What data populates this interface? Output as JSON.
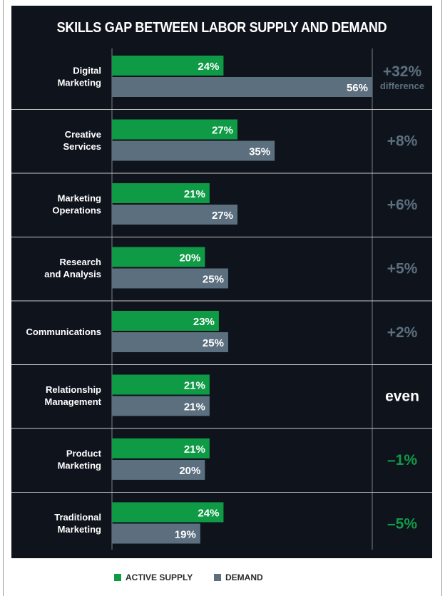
{
  "chart_data": {
    "type": "bar",
    "title": "SKILLS GAP BETWEEN LABOR SUPPLY AND DEMAND",
    "categories": [
      [
        "Digital",
        "Marketing"
      ],
      [
        "Creative",
        "Services"
      ],
      [
        "Marketing",
        "Operations"
      ],
      [
        "Research",
        "and Analysis"
      ],
      [
        "Communications"
      ],
      [
        "Relationship",
        "Management"
      ],
      [
        "Product",
        "Marketing"
      ],
      [
        "Traditional",
        "Marketing"
      ]
    ],
    "series": [
      {
        "name": "ACTIVE SUPPLY",
        "values": [
          24,
          27,
          21,
          20,
          23,
          21,
          21,
          24
        ],
        "labels": [
          "24%",
          "27%",
          "21%",
          "20%",
          "23%",
          "21%",
          "21%",
          "24%"
        ],
        "color": "#0f9b46"
      },
      {
        "name": "DEMAND",
        "values": [
          56,
          35,
          27,
          25,
          25,
          21,
          20,
          19
        ],
        "labels": [
          "56%",
          "35%",
          "27%",
          "25%",
          "25%",
          "21%",
          "20%",
          "19%"
        ],
        "color": "#5b6f7e"
      }
    ],
    "differences": [
      {
        "text": "+32%",
        "sub": "difference",
        "kind": "positive"
      },
      {
        "text": "+8%",
        "kind": "positive"
      },
      {
        "text": "+6%",
        "kind": "positive"
      },
      {
        "text": "+5%",
        "kind": "positive"
      },
      {
        "text": "+2%",
        "kind": "positive"
      },
      {
        "text": "even",
        "kind": "even"
      },
      {
        "text": "–1%",
        "kind": "negative"
      },
      {
        "text": "–5%",
        "kind": "negative"
      }
    ],
    "xlim": [
      0,
      56
    ],
    "grid": false,
    "legend_position": "bottom",
    "colors": {
      "background": "#0f131c",
      "positive": "#5b6f7e",
      "even": "#ffffff",
      "negative": "#0f9b46",
      "label": "#ffffff",
      "divider": "#c8c8c8"
    }
  }
}
